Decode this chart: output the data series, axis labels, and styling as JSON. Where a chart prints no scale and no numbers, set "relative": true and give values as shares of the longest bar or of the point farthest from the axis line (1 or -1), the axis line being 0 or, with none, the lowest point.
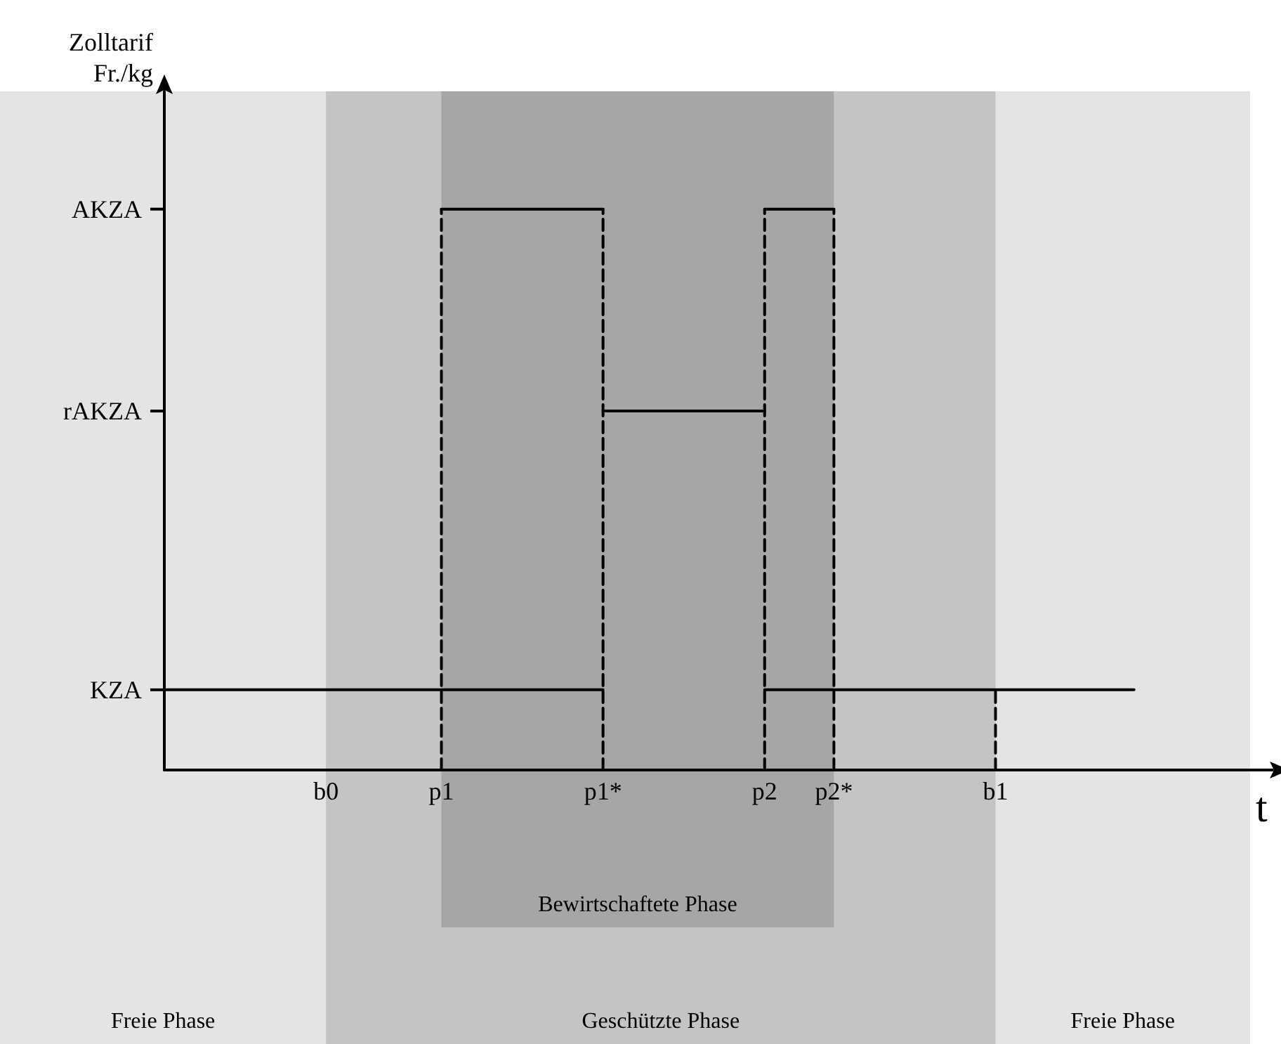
{
  "chart_data": {
    "type": "line",
    "xlabel": "t",
    "ylabel": "Zolltarif Fr./kg",
    "relative": true,
    "categories": [
      null,
      null,
      null,
      null,
      null,
      null,
      null,
      "b0",
      null,
      null,
      null,
      null,
      "p1",
      null,
      null,
      null,
      null,
      null,
      null,
      "p1*",
      null,
      null,
      null,
      null,
      null,
      null,
      "p2",
      null,
      null,
      "p2*",
      null,
      null,
      null,
      null,
      null,
      null,
      "b1",
      null,
      null,
      null,
      null,
      null,
      null,
      null,
      null,
      null,
      null,
      null,
      null
    ],
    "annotations": [
      "Freie Phase",
      "Freie Phase"
    ],
    "series": [
      {
        "name": "KZA",
        "color": "#000000",
        "values": [
          0.143,
          0.143,
          0.143,
          0.143,
          0.143,
          0.143,
          0.143,
          0.143,
          0.143,
          0.143,
          0.143,
          0.143,
          0.143,
          0.143,
          0.143,
          0.143,
          0.143,
          0.143,
          0.143,
          0.143,
          null,
          null,
          null,
          null,
          null,
          null,
          null,
          null,
          null,
          null,
          null,
          null,
          null,
          null,
          null,
          null,
          null,
          null,
          null,
          null,
          null,
          null,
          null,
          null,
          null,
          null,
          null,
          null,
          null
        ]
      },
      {
        "color": "#000000",
        "values": [
          null,
          null,
          null,
          null,
          null,
          null,
          null,
          null,
          null,
          null,
          null,
          null,
          null,
          null,
          null,
          null,
          null,
          null,
          null,
          null,
          null,
          null,
          null,
          null,
          null,
          null,
          0.143,
          0.143,
          0.143,
          0.143,
          0.143,
          0.143,
          0.143,
          0.143,
          0.143,
          0.143,
          0.143,
          0.143,
          0.143,
          0.143,
          0.143,
          0.143,
          0.143,
          null,
          null,
          null,
          null,
          null,
          null
        ]
      },
      {
        "name": "AKZA",
        "color": "#000000",
        "values": [
          null,
          null,
          null,
          null,
          null,
          null,
          null,
          null,
          null,
          null,
          null,
          null,
          1,
          1,
          1,
          1,
          1,
          1,
          1,
          1,
          null,
          null,
          null,
          null,
          null,
          null,
          null,
          null,
          null,
          null,
          null,
          null,
          null,
          null,
          null,
          null,
          null,
          null,
          null,
          null,
          null,
          null,
          null,
          null,
          null,
          null,
          null,
          null,
          null
        ]
      },
      {
        "name": "rAKZA",
        "color": "#000000",
        "values": [
          null,
          null,
          null,
          null,
          null,
          null,
          null,
          null,
          null,
          null,
          null,
          null,
          null,
          null,
          null,
          null,
          null,
          null,
          null,
          0.64,
          0.64,
          0.64,
          0.64,
          0.64,
          0.64,
          0.64,
          0.64,
          null,
          null,
          null,
          null,
          null,
          null,
          null,
          null,
          null,
          null,
          null,
          null,
          null,
          null,
          null,
          null,
          null,
          null,
          null,
          null,
          null,
          null
        ]
      },
      {
        "color": "#000000",
        "values": [
          null,
          null,
          null,
          null,
          null,
          null,
          null,
          null,
          null,
          null,
          null,
          null,
          null,
          null,
          null,
          null,
          null,
          null,
          null,
          null,
          null,
          null,
          null,
          null,
          null,
          null,
          1,
          1,
          1,
          1,
          null,
          null,
          null,
          null,
          null,
          null,
          null,
          null,
          null,
          null,
          null,
          null,
          null,
          null,
          null,
          null,
          null,
          null,
          null
        ]
      },
      {
        "color": "#000000",
        "line_style": "dashed",
        "x": [
          "p1",
          "p1"
        ],
        "values": [
          0,
          1
        ]
      },
      {
        "color": "#000000",
        "line_style": "dashed",
        "x": [
          "p1*",
          "p1*"
        ],
        "values": [
          0,
          1
        ]
      },
      {
        "color": "#000000",
        "line_style": "dashed",
        "x": [
          "p2",
          "p2"
        ],
        "values": [
          0,
          1
        ]
      },
      {
        "color": "#000000",
        "line_style": "dashed",
        "x": [
          "p2*",
          "p2*"
        ],
        "values": [
          0,
          1
        ]
      },
      {
        "color": "#000000",
        "line_style": "dashed",
        "x": [
          "b1",
          "b1"
        ],
        "values": [
          0,
          0.143
        ]
      }
    ],
    "bands": [
      {
        "axis": "x",
        "from": "b0",
        "to": "b1",
        "label": "Geschützte Phase",
        "color": "#c4c4c4"
      },
      {
        "axis": "x",
        "from": "p1",
        "to": "p2*",
        "label": "Bewirtschaftete Phase",
        "color": "#a6a6a6"
      }
    ],
    "grid": false,
    "legend": "left",
    "marker": "none"
  }
}
